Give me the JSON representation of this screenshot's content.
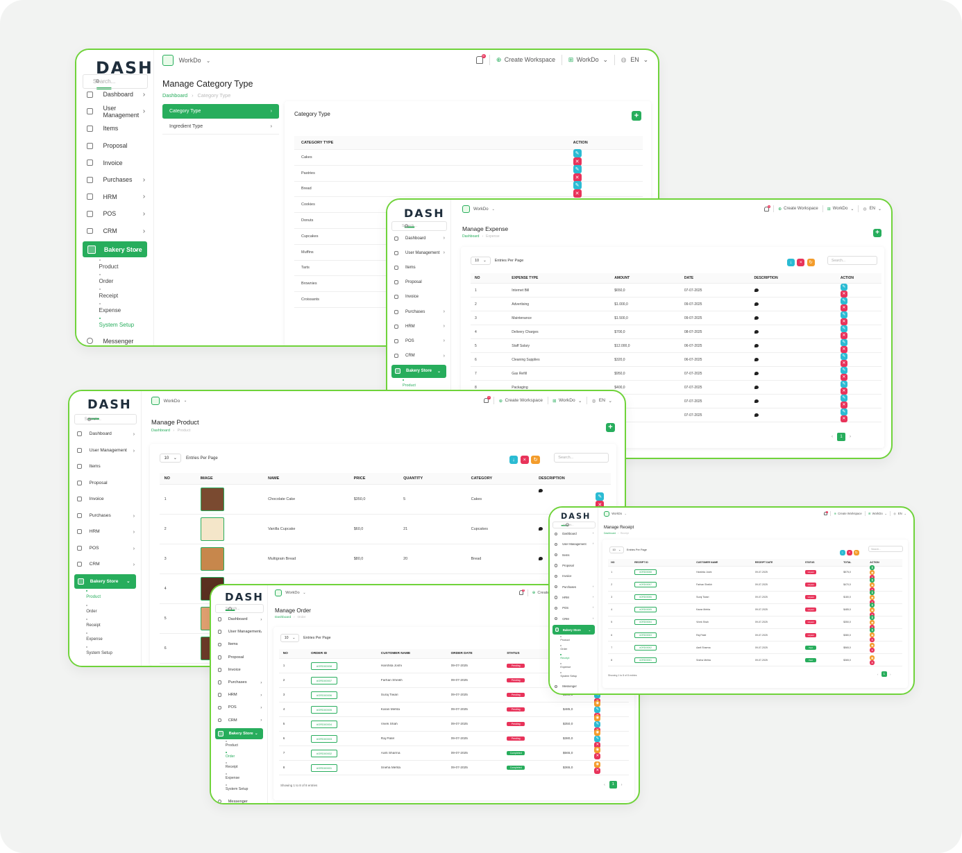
{
  "brand": {
    "logo": "DASH",
    "logo_accent": "—"
  },
  "colors": {
    "accent": "#27ad5c",
    "frame": "#6fd33a",
    "cyan": "#2bbbd3",
    "red": "#e8335a",
    "orange": "#f39c2b"
  },
  "common": {
    "search_placeholder": "Search...",
    "workspace": "WorkDo",
    "create_workspace": "Create Workspace",
    "lang": "EN",
    "bell_count": "0",
    "entries_per_page": "Entries Per Page",
    "per_page_value": "10",
    "page_number": "1",
    "breadcrumb_home": "Dashboard"
  },
  "nav": {
    "dashboard": "Dashboard",
    "user_management": "User Management",
    "items": "Items",
    "proposal": "Proposal",
    "invoice": "Invoice",
    "purchases": "Purchases",
    "hrm": "HRM",
    "pos": "POS",
    "crm": "CRM",
    "bakery_store": "Bakery Store",
    "product": "Product",
    "order": "Order",
    "receipt": "Receipt",
    "expense": "Expense",
    "system_setup": "System Setup",
    "messenger": "Messenger"
  },
  "category": {
    "title": "Manage Category Type",
    "crumb": "Category Type",
    "menu": [
      "Category Type",
      "Ingredient Type"
    ],
    "card_title": "Category Type",
    "col_type": "CATEGORY TYPE",
    "col_action": "ACTION",
    "rows": [
      "Cakes",
      "Pastries",
      "Bread",
      "Cookies",
      "Donuts",
      "Cupcakes",
      "Muffins",
      "Tarts",
      "Brownies",
      "Croissants"
    ]
  },
  "expense": {
    "title": "Manage Expense",
    "crumb": "Expense",
    "cols": [
      "NO",
      "EXPENSE TYPE",
      "AMOUNT",
      "DATE",
      "DESCRIPTION",
      "ACTION"
    ],
    "rows": [
      [
        "1",
        "Internet Bill",
        "$650,0",
        "07-07-2025"
      ],
      [
        "2",
        "Advertising",
        "$1.000,0",
        "09-07-2025"
      ],
      [
        "3",
        "Maintenance",
        "$1.500,0",
        "09-07-2025"
      ],
      [
        "4",
        "Delivery Charges",
        "$700,0",
        "08-07-2025"
      ],
      [
        "5",
        "Staff Salary",
        "$12.000,0",
        "06-07-2025"
      ],
      [
        "6",
        "Cleaning Supplies",
        "$320,0",
        "06-07-2025"
      ],
      [
        "7",
        "Gas Refill",
        "$950,0",
        "07-07-2025"
      ],
      [
        "8",
        "Packaging",
        "$400,0",
        "07-07-2025"
      ],
      [
        "9",
        "",
        "$300,0",
        "07-07-2025"
      ],
      [
        "10",
        "",
        "$200,0",
        "07-07-2025"
      ]
    ]
  },
  "product": {
    "title": "Manage Product",
    "crumb": "Product",
    "cols": [
      "NO",
      "IMAGE",
      "NAME",
      "PRICE",
      "QUANTITY",
      "CATEGORY",
      "DESCRIPTION",
      "ACTION"
    ],
    "rows": [
      [
        "1",
        "Chocolate Cake",
        "$350,0",
        "5",
        "Cakes"
      ],
      [
        "2",
        "Vanilla Cupcake",
        "$60,0",
        "21",
        "Cupcakes"
      ],
      [
        "3",
        "Multigrain Bread",
        "$80,0",
        "20",
        "Bread"
      ],
      [
        "4",
        "",
        "",
        "",
        ""
      ],
      [
        "5",
        "",
        "",
        "",
        ""
      ],
      [
        "6",
        "",
        "",
        "",
        ""
      ]
    ]
  },
  "order": {
    "title": "Manage Order",
    "crumb": "Order",
    "cols": [
      "NO",
      "ORDER ID",
      "CUSTOMER NAME",
      "ORDER DATE",
      "STATUS",
      "TOTAL",
      "ACTION"
    ],
    "rows": [
      [
        "1",
        "#ORD00008",
        "Harshita Joshi",
        "09-07-2025",
        "Pending",
        ""
      ],
      [
        "2",
        "#ORD00007",
        "Farhan Sheikh",
        "09-07-2025",
        "Pending",
        ""
      ],
      [
        "3",
        "#ORD00006",
        "Suraj Tiwari",
        "09-07-2025",
        "Pending",
        "$180,0"
      ],
      [
        "4",
        "#ORD00005",
        "Karan Mehta",
        "09-07-2025",
        "Pending",
        "$485,0"
      ],
      [
        "5",
        "#ORD00004",
        "Vivek Shah",
        "09-07-2025",
        "Pending",
        "$350,0"
      ],
      [
        "6",
        "#ORD00003",
        "Raj Patel",
        "09-07-2025",
        "Pending",
        "$380,0"
      ],
      [
        "7",
        "#ORD00002",
        "Aarti Sharma",
        "09-07-2025",
        "Completed",
        "$565,0"
      ],
      [
        "8",
        "#ORD00001",
        "Sneha Mehta",
        "09-07-2025",
        "Completed",
        "$365,0"
      ]
    ],
    "showing": "Showing 1 to 8 of 8 entries"
  },
  "receipt": {
    "title": "Manage Receipt",
    "crumb": "Receipt",
    "cols": [
      "NO",
      "RECEIPT ID",
      "CUSTOMER NAME",
      "RECEIPT DATE",
      "STATUS",
      "TOTAL",
      "ACTION"
    ],
    "rows": [
      [
        "1",
        "#ORD00008",
        "Harshita Joshi",
        "09-07-2025",
        "Unpaid",
        "$575,0"
      ],
      [
        "2",
        "#ORD00007",
        "Farhan Sheikh",
        "09-07-2025",
        "Unpaid",
        "$470,0"
      ],
      [
        "3",
        "#ORD00006",
        "Suraj Tiwari",
        "09-07-2025",
        "Unpaid",
        "$180,0"
      ],
      [
        "4",
        "#ORD00005",
        "Karan Mehta",
        "09-07-2025",
        "Unpaid",
        "$485,0"
      ],
      [
        "5",
        "#ORD00004",
        "Vivek Shah",
        "09-07-2025",
        "Unpaid",
        "$350,0"
      ],
      [
        "6",
        "#ORD00003",
        "Raj Patel",
        "09-07-2025",
        "Unpaid",
        "$380,0"
      ],
      [
        "7",
        "#ORD00002",
        "Aarti Sharma",
        "09-07-2025",
        "Paid",
        "$565,0"
      ],
      [
        "8",
        "#ORD00001",
        "Sneha Mehta",
        "09-07-2025",
        "Paid",
        "$365,0"
      ]
    ],
    "showing": "Showing 1 to 8 of 8 entries"
  }
}
